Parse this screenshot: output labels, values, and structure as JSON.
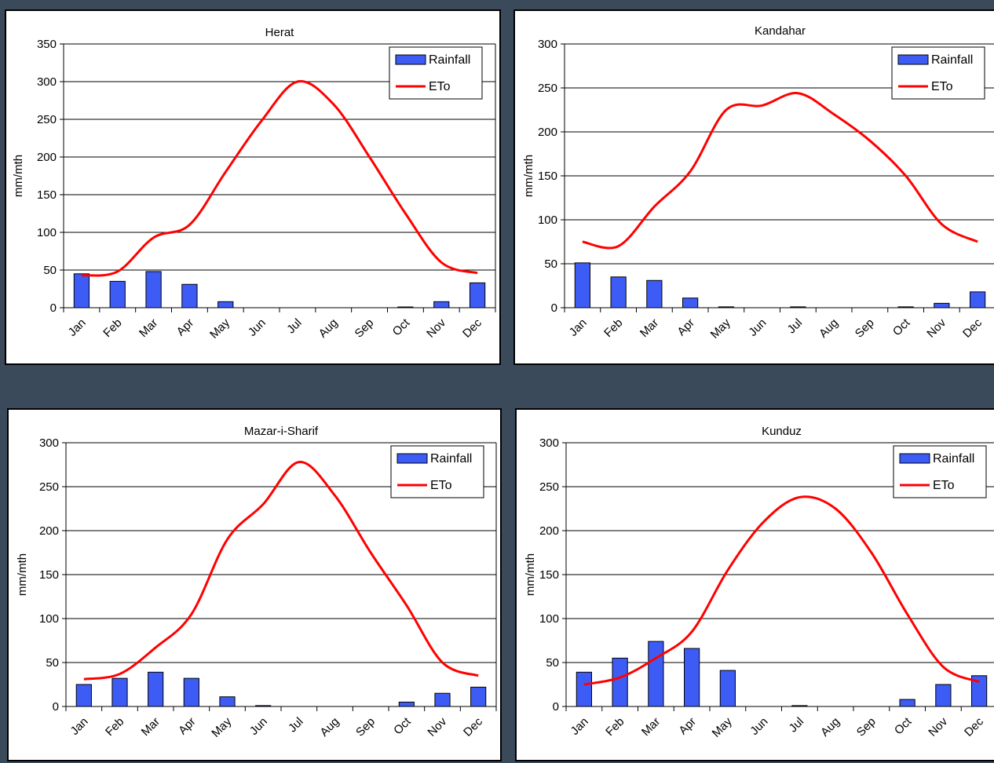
{
  "chart_data": [
    {
      "type": "bar",
      "title": "Herat",
      "ylabel": "mm/mth",
      "xlabel": "",
      "ylim": [
        0,
        350
      ],
      "yticks": [
        0,
        50,
        100,
        150,
        200,
        250,
        300,
        350
      ],
      "grid": true,
      "legend_position": "top-right",
      "categories": [
        "Jan",
        "Feb",
        "Mar",
        "Apr",
        "May",
        "Jun",
        "Jul",
        "Aug",
        "Sep",
        "Oct",
        "Nov",
        "Dec"
      ],
      "series": [
        {
          "name": "Rainfall",
          "type": "bar",
          "color": "#3d5cf5",
          "values": [
            45,
            35,
            48,
            31,
            8,
            0,
            0,
            0,
            0,
            1,
            8,
            33
          ]
        },
        {
          "name": "ETo",
          "type": "line",
          "color": "#ff0000",
          "values": [
            43,
            48,
            93,
            110,
            180,
            248,
            300,
            270,
            200,
            125,
            60,
            46
          ]
        }
      ]
    },
    {
      "type": "bar",
      "title": "Kandahar",
      "ylabel": "mm/mth",
      "xlabel": "",
      "ylim": [
        0,
        300
      ],
      "yticks": [
        0,
        50,
        100,
        150,
        200,
        250,
        300
      ],
      "grid": true,
      "legend_position": "top-right",
      "categories": [
        "Jan",
        "Feb",
        "Mar",
        "Apr",
        "May",
        "Jun",
        "Jul",
        "Aug",
        "Sep",
        "Oct",
        "Nov",
        "Dec"
      ],
      "series": [
        {
          "name": "Rainfall",
          "type": "bar",
          "color": "#3d5cf5",
          "values": [
            51,
            35,
            31,
            11,
            1,
            0,
            1,
            0,
            0,
            1,
            5,
            18
          ]
        },
        {
          "name": "ETo",
          "type": "line",
          "color": "#ff0000",
          "values": [
            75,
            70,
            115,
            155,
            225,
            230,
            244,
            220,
            190,
            150,
            95,
            75
          ]
        }
      ]
    },
    {
      "type": "bar",
      "title": "Mazar-i-Sharif",
      "ylabel": "mm/mth",
      "xlabel": "",
      "ylim": [
        0,
        300
      ],
      "yticks": [
        0,
        50,
        100,
        150,
        200,
        250,
        300
      ],
      "grid": true,
      "legend_position": "top-right",
      "categories": [
        "Jan",
        "Feb",
        "Mar",
        "Apr",
        "May",
        "Jun",
        "Jul",
        "Aug",
        "Sep",
        "Oct",
        "Nov",
        "Dec"
      ],
      "series": [
        {
          "name": "Rainfall",
          "type": "bar",
          "color": "#3d5cf5",
          "values": [
            25,
            32,
            39,
            32,
            11,
            1,
            0,
            0,
            0,
            5,
            15,
            22
          ]
        },
        {
          "name": "ETo",
          "type": "line",
          "color": "#ff0000",
          "values": [
            31,
            37,
            67,
            105,
            190,
            230,
            278,
            240,
            175,
            115,
            50,
            35
          ]
        }
      ]
    },
    {
      "type": "bar",
      "title": "Kunduz",
      "ylabel": "mm/mth",
      "xlabel": "",
      "ylim": [
        0,
        300
      ],
      "yticks": [
        0,
        50,
        100,
        150,
        200,
        250,
        300
      ],
      "grid": true,
      "legend_position": "top-right",
      "categories": [
        "Jan",
        "Feb",
        "Mar",
        "Apr",
        "May",
        "Jun",
        "Jul",
        "Aug",
        "Sep",
        "Oct",
        "Nov",
        "Dec"
      ],
      "series": [
        {
          "name": "Rainfall",
          "type": "bar",
          "color": "#3d5cf5",
          "values": [
            39,
            55,
            74,
            66,
            41,
            0,
            1,
            0,
            0,
            8,
            25,
            35
          ]
        },
        {
          "name": "ETo",
          "type": "line",
          "color": "#ff0000",
          "values": [
            25,
            33,
            55,
            85,
            155,
            210,
            238,
            225,
            175,
            105,
            45,
            28
          ]
        }
      ]
    }
  ]
}
